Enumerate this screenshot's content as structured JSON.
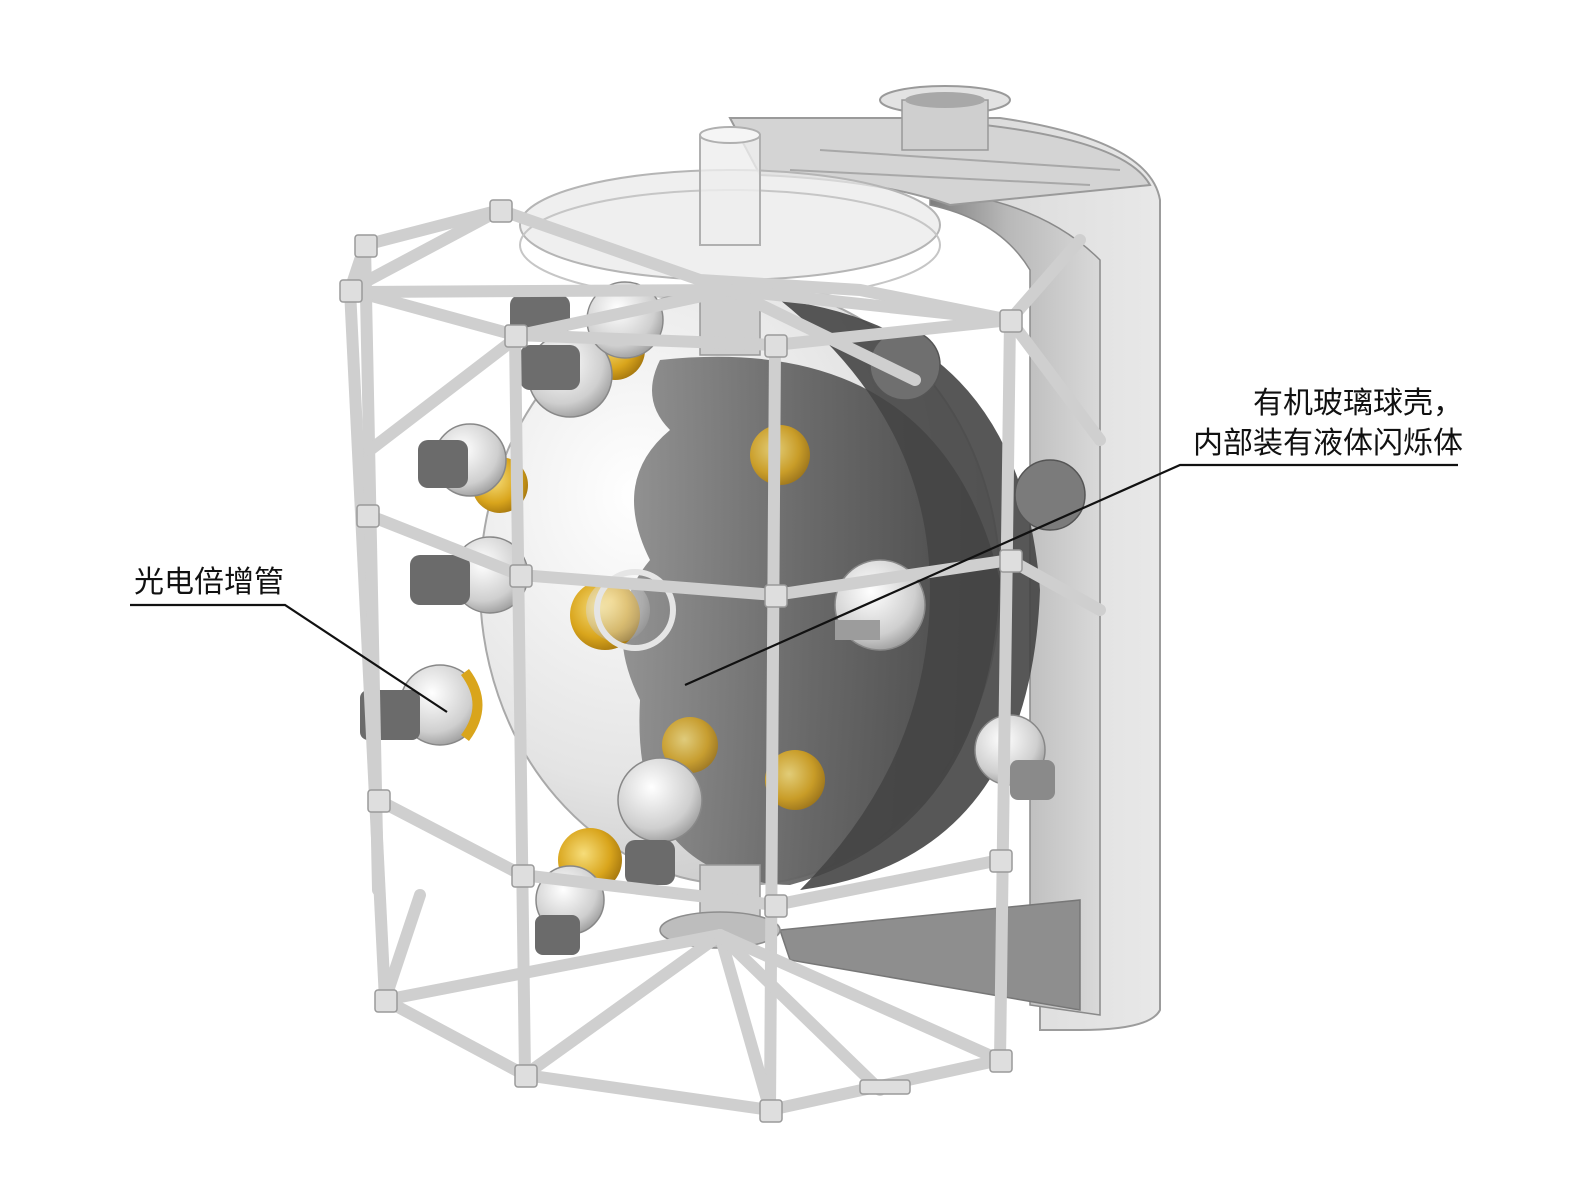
{
  "labels": {
    "pmt": "光电倍增管",
    "sphere_line1": "有机玻璃球壳，",
    "sphere_line2": "内部装有液体闪烁体"
  },
  "colors": {
    "frame": "#d6d6d6",
    "frame_edge": "#a9a9a9",
    "tank": "#cfcfcf",
    "tank_dark": "#8f8f8f",
    "sphere_glass": "#eeeeee",
    "sphere_shadow": "#555555",
    "pmt_body": "#6e6e6e",
    "pmt_glass": "#e2b62b",
    "leader_line": "#111111",
    "text": "#111111"
  }
}
